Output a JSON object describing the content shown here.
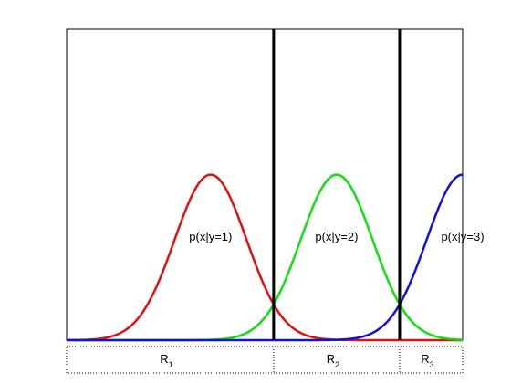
{
  "chart_data": {
    "type": "line",
    "title": "",
    "xlabel": "",
    "ylabel": "",
    "grid": false,
    "xlim": [
      -3.0,
      8.0
    ],
    "ylim": [
      0,
      0.75
    ],
    "x_axis_ticks": false,
    "y_axis_ticks": false,
    "series": [
      {
        "mean": 1.0,
        "std": 1.0,
        "color": "#e01010",
        "label": "p(x|y=1)",
        "label_x": 1.0,
        "label_y": 0.24
      },
      {
        "mean": 4.5,
        "std": 1.0,
        "color": "#10e010",
        "label": "p(x|y=2)",
        "label_x": 4.5,
        "label_y": 0.24
      },
      {
        "mean": 8.0,
        "std": 1.0,
        "color": "#1010e0",
        "label": "p(x|y=3)",
        "label_x": 8.0,
        "label_y": 0.24
      }
    ],
    "boundaries": [
      2.75,
      6.25
    ],
    "regions": [
      {
        "main": "R",
        "sub": "1",
        "from": -3.0,
        "to": 2.75
      },
      {
        "main": "R",
        "sub": "2",
        "from": 2.75,
        "to": 6.25
      },
      {
        "main": "R",
        "sub": "3",
        "from": 6.25,
        "to": 8.0
      }
    ]
  }
}
